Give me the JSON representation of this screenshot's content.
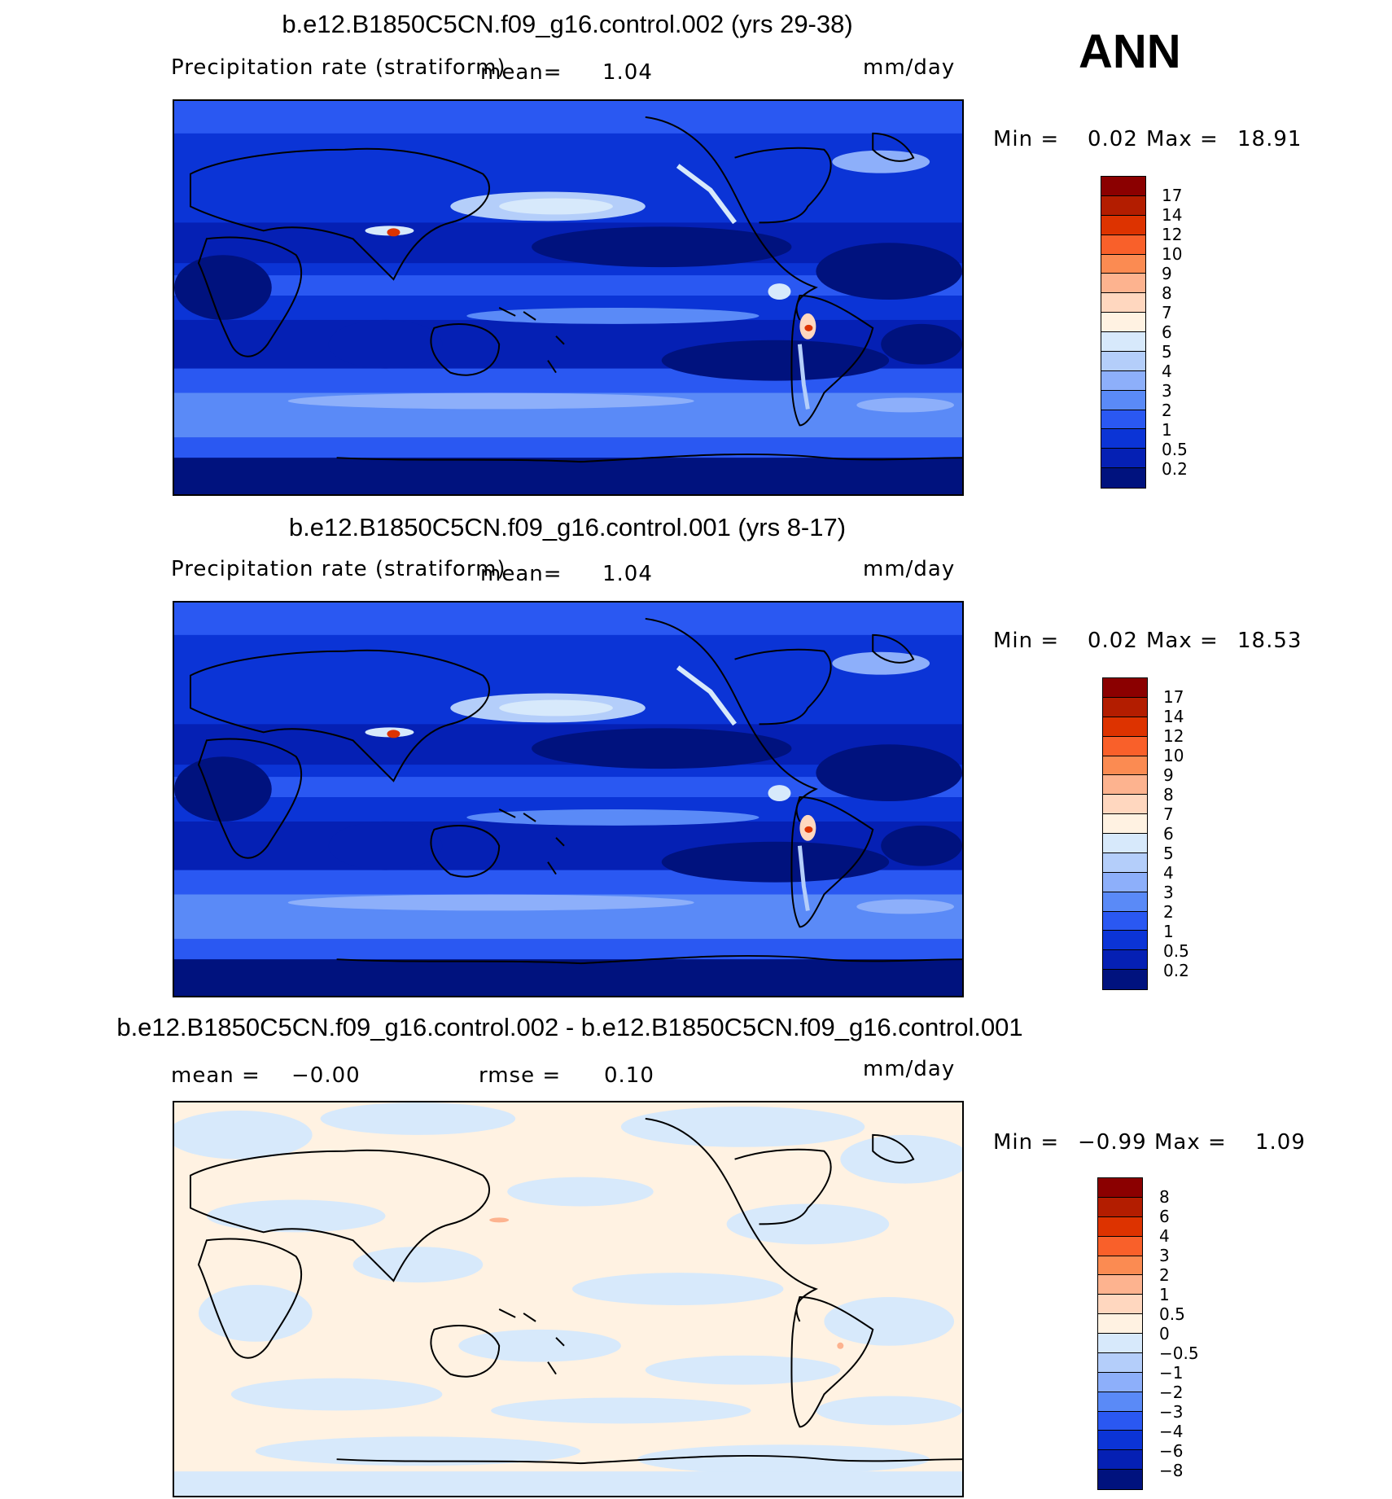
{
  "season": "ANN",
  "panels": [
    {
      "title": "b.e12.B1850C5CN.f09_g16.control.002 (yrs 29-38)",
      "variable": "Precipitation rate (stratiform)",
      "stat_label": "mean=",
      "stat_value": "1.04",
      "units": "mm/day",
      "min_label": "Min =",
      "min_value": "0.02",
      "max_label": "Max =",
      "max_value": "18.91",
      "colorbar": {
        "labels": [
          "17",
          "14",
          "12",
          "10",
          "9",
          "8",
          "7",
          "6",
          "5",
          "4",
          "3",
          "2",
          "1",
          "0.5",
          "0.2"
        ],
        "colors": [
          "#8b0000",
          "#b31d00",
          "#dd3300",
          "#f9602a",
          "#fb8b52",
          "#fdb38f",
          "#ffd7bf",
          "#fff2e2",
          "#d7e9fb",
          "#b4cefa",
          "#8daffa",
          "#5a8af7",
          "#2a58f2",
          "#0b34d6",
          "#0520b4",
          "#00127e"
        ]
      }
    },
    {
      "title": "b.e12.B1850C5CN.f09_g16.control.001 (yrs 8-17)",
      "variable": "Precipitation rate (stratiform)",
      "stat_label": "mean=",
      "stat_value": "1.04",
      "units": "mm/day",
      "min_label": "Min =",
      "min_value": "0.02",
      "max_label": "Max =",
      "max_value": "18.53",
      "colorbar": {
        "labels": [
          "17",
          "14",
          "12",
          "10",
          "9",
          "8",
          "7",
          "6",
          "5",
          "4",
          "3",
          "2",
          "1",
          "0.5",
          "0.2"
        ],
        "colors": [
          "#8b0000",
          "#b31d00",
          "#dd3300",
          "#f9602a",
          "#fb8b52",
          "#fdb38f",
          "#ffd7bf",
          "#fff2e2",
          "#d7e9fb",
          "#b4cefa",
          "#8daffa",
          "#5a8af7",
          "#2a58f2",
          "#0b34d6",
          "#0520b4",
          "#00127e"
        ]
      }
    },
    {
      "title": "b.e12.B1850C5CN.f09_g16.control.002 - b.e12.B1850C5CN.f09_g16.control.001",
      "mean_label": "mean =",
      "mean_value": "−0.00",
      "rmse_label": "rmse =",
      "rmse_value": "0.10",
      "units": "mm/day",
      "min_label": "Min =",
      "min_value": "−0.99",
      "max_label": "Max =",
      "max_value": "1.09",
      "colorbar": {
        "labels": [
          "8",
          "6",
          "4",
          "3",
          "2",
          "1",
          "0.5",
          "0",
          "−0.5",
          "−1",
          "−2",
          "−3",
          "−4",
          "−6",
          "−8"
        ],
        "colors": [
          "#8b0000",
          "#b31d00",
          "#dd3300",
          "#f9602a",
          "#fb8b52",
          "#fdb38f",
          "#ffd7bf",
          "#fff2e2",
          "#d7e9fb",
          "#b4cefa",
          "#8daffa",
          "#5a8af7",
          "#2a58f2",
          "#0b34d6",
          "#0520b4",
          "#00127e"
        ]
      }
    }
  ]
}
